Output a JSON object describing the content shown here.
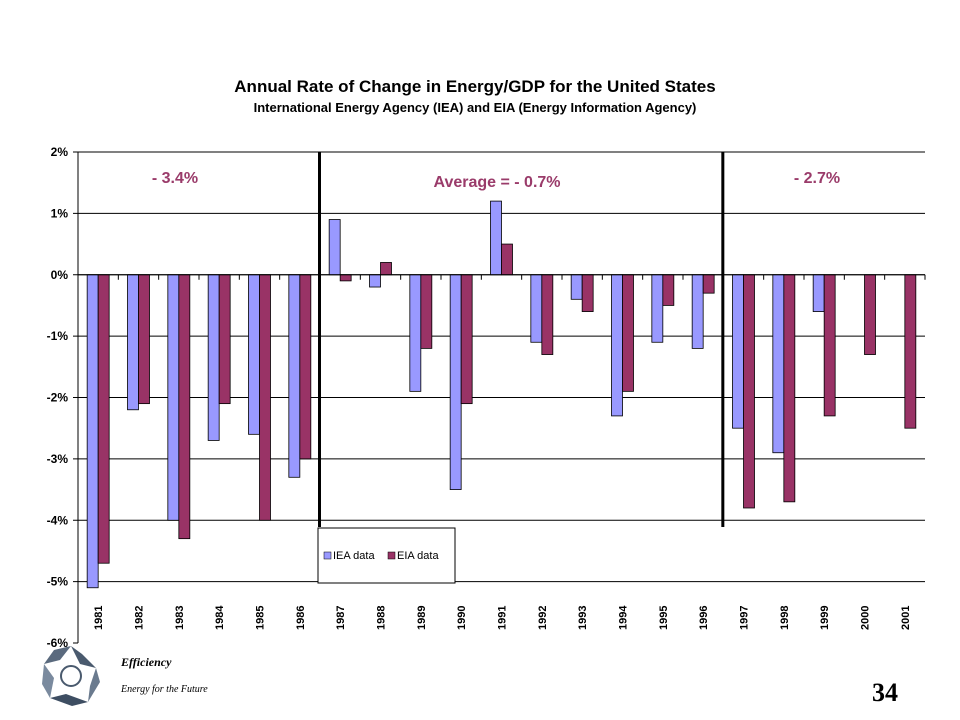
{
  "chart_data": {
    "type": "bar",
    "title": "Annual Rate of Change in Energy/GDP for the United States",
    "subtitle": "International Energy Agency  (IEA) and EIA (Energy Information Agency)",
    "categories": [
      "1981",
      "1982",
      "1983",
      "1984",
      "1985",
      "1986",
      "1987",
      "1988",
      "1989",
      "1990",
      "1991",
      "1992",
      "1993",
      "1994",
      "1995",
      "1996",
      "1997",
      "1998",
      "1999",
      "2000",
      "2001"
    ],
    "series": [
      {
        "name": "IEA data",
        "color": "#9999ff",
        "values": [
          -5.1,
          -2.2,
          -4.0,
          -2.7,
          -2.6,
          -3.3,
          0.9,
          -0.2,
          -1.9,
          -3.5,
          1.2,
          -1.1,
          -0.4,
          -2.3,
          -1.1,
          -1.2,
          -2.5,
          -2.9,
          -0.6,
          null,
          null
        ]
      },
      {
        "name": "EIA data",
        "color": "#993366",
        "values": [
          -4.7,
          -2.1,
          -4.3,
          -2.1,
          -4.0,
          -3.0,
          -0.1,
          0.2,
          -1.2,
          -2.1,
          0.5,
          -1.3,
          -0.6,
          -1.9,
          -0.5,
          -0.3,
          -3.8,
          -3.7,
          -2.3,
          -1.3,
          -2.5
        ]
      }
    ],
    "ylim": [
      -6,
      2
    ],
    "yticks": [
      "2%",
      "1%",
      "0%",
      "-1%",
      "-2%",
      "-3%",
      "-4%",
      "-5%",
      "-6%"
    ],
    "grid": true,
    "legend": "bottom-center",
    "annotations": [
      "- 3.4%",
      "Average = - 0.7%",
      "- 2.7%"
    ]
  },
  "footer": {
    "brand": "Efficiency",
    "tagline": "Energy for the Future",
    "page_number": "34"
  }
}
